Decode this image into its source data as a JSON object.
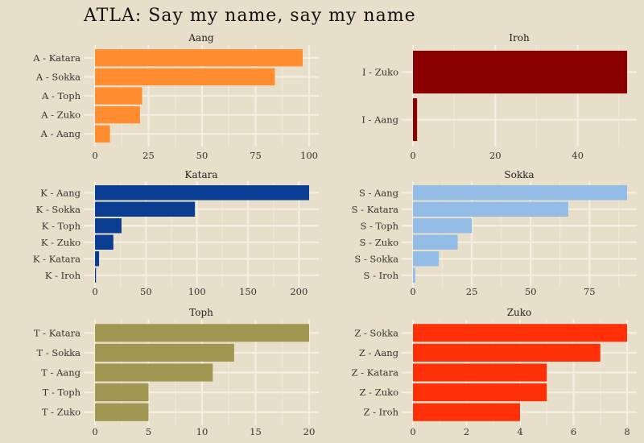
{
  "chart_data": {
    "title": "ATLA: Say my name, say my name",
    "type": "bar",
    "orientation": "horizontal",
    "grid": true,
    "panels": [
      {
        "title": "Aang",
        "color": "#ff8c2e",
        "xlim": [
          0,
          100
        ],
        "ticks": [
          0,
          25,
          50,
          75,
          100
        ],
        "categories": [
          "A - Katara",
          "A - Sokka",
          "A - Toph",
          "A - Zuko",
          "A - Aang"
        ],
        "values": [
          97,
          84,
          22,
          21,
          7
        ]
      },
      {
        "title": "Iroh",
        "color": "#8b0000",
        "xlim": [
          0,
          52
        ],
        "ticks": [
          0,
          20,
          40
        ],
        "categories": [
          "I - Zuko",
          "I - Aang"
        ],
        "values": [
          52,
          1
        ]
      },
      {
        "title": "Katara",
        "color": "#0a3d91",
        "xlim": [
          0,
          210
        ],
        "ticks": [
          0,
          50,
          100,
          150,
          200
        ],
        "categories": [
          "K - Aang",
          "K - Sokka",
          "K - Toph",
          "K - Zuko",
          "K - Katara",
          "K - Iroh"
        ],
        "values": [
          210,
          98,
          26,
          18,
          4,
          1
        ]
      },
      {
        "title": "Sokka",
        "color": "#93bce6",
        "xlim": [
          0,
          91
        ],
        "ticks": [
          0,
          25,
          50,
          75
        ],
        "categories": [
          "S - Aang",
          "S - Katara",
          "S - Toph",
          "S - Zuko",
          "S - Sokka",
          "S - Iroh"
        ],
        "values": [
          91,
          66,
          25,
          19,
          11,
          1
        ]
      },
      {
        "title": "Toph",
        "color": "#a09753",
        "xlim": [
          0,
          20
        ],
        "ticks": [
          0,
          5,
          10,
          15,
          20
        ],
        "categories": [
          "T - Katara",
          "T - Sokka",
          "T - Aang",
          "T - Toph",
          "T - Zuko"
        ],
        "values": [
          20,
          13,
          11,
          5,
          5
        ]
      },
      {
        "title": "Zuko",
        "color": "#ff3008",
        "xlim": [
          0,
          8
        ],
        "ticks": [
          0,
          2,
          4,
          6,
          8
        ],
        "categories": [
          "Z - Sokka",
          "Z - Aang",
          "Z - Katara",
          "Z - Zuko",
          "Z - Iroh"
        ],
        "values": [
          8,
          7,
          5,
          5,
          4
        ]
      }
    ]
  }
}
